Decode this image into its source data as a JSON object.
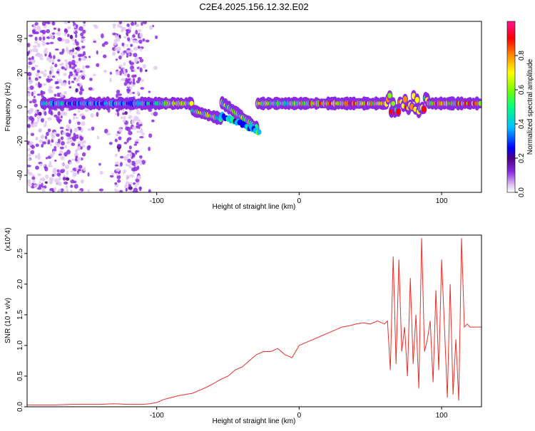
{
  "title": "C2E4.2025.156.12.32.E02",
  "colors": {
    "snr_line": "#e8302a",
    "frame": "#000000",
    "colormap": [
      "#ffffff",
      "#e2c9f2",
      "#8a2be2",
      "#4b0082",
      "#0000ff",
      "#00bfff",
      "#00ff7f",
      "#7cfc00",
      "#ffff00",
      "#ff8c00",
      "#ff0000",
      "#ff1493"
    ]
  },
  "chart_data": [
    {
      "type": "heatmap",
      "xlabel": "Height of straight line (km)",
      "ylabel": "Frequency (Hz)",
      "xlim": [
        -191,
        128
      ],
      "ylim": [
        -50,
        50
      ],
      "xticks": [
        {
          "v": -100,
          "label": "-100"
        },
        {
          "v": 0,
          "label": "0"
        },
        {
          "v": 100,
          "label": "100"
        }
      ],
      "yticks": [
        {
          "v": -40,
          "label": "-40"
        },
        {
          "v": -20,
          "label": "-20"
        },
        {
          "v": 0,
          "label": "0"
        },
        {
          "v": 20,
          "label": "20"
        },
        {
          "v": 40,
          "label": "40"
        }
      ],
      "colorbar": {
        "label": "Normalized spectral amplitude",
        "range": [
          0,
          1
        ],
        "ticks": [
          {
            "v": 0.0,
            "label": "0.0"
          },
          {
            "v": 0.2,
            "label": "0.2"
          },
          {
            "v": 0.4,
            "label": "0.4"
          },
          {
            "v": 0.6,
            "label": "0.6"
          },
          {
            "v": 0.8,
            "label": "0.8"
          }
        ]
      }
    },
    {
      "type": "line",
      "xlabel": "Height of straight line (km)",
      "ylabel": "SNR (10 * v/v)",
      "yscale_note": "(x10^4)",
      "xlim": [
        -191,
        128
      ],
      "ylim": [
        0,
        2.8
      ],
      "xticks": [
        {
          "v": -100,
          "label": "-100"
        },
        {
          "v": 0,
          "label": "0"
        },
        {
          "v": 100,
          "label": "100"
        }
      ],
      "yticks": [
        {
          "v": 0.0,
          "label": "0.0"
        },
        {
          "v": 0.5,
          "label": "0.5"
        },
        {
          "v": 1.0,
          "label": "1.0"
        },
        {
          "v": 1.5,
          "label": "1.5"
        },
        {
          "v": 2.0,
          "label": "2.0"
        },
        {
          "v": 2.5,
          "label": "2.5"
        }
      ],
      "series": [
        {
          "x": [
            -191,
            -180,
            -170,
            -160,
            -150,
            -140,
            -130,
            -120,
            -110,
            -105,
            -100,
            -95,
            -90,
            -85,
            -80,
            -75,
            -70,
            -65,
            -60,
            -55,
            -50,
            -45,
            -40,
            -35,
            -30,
            -25,
            -20,
            -15,
            -10,
            -5,
            0,
            5,
            10,
            15,
            20,
            25,
            30,
            35,
            40,
            45,
            50,
            55,
            60,
            62,
            64,
            66,
            68,
            70,
            72,
            74,
            76,
            78,
            80,
            82,
            84,
            86,
            88,
            90,
            92,
            94,
            96,
            98,
            100,
            102,
            104,
            106,
            108,
            110,
            112,
            114,
            116,
            118,
            120,
            124,
            128
          ],
          "y": [
            0.03,
            0.03,
            0.03,
            0.04,
            0.04,
            0.04,
            0.05,
            0.04,
            0.04,
            0.05,
            0.07,
            0.12,
            0.15,
            0.18,
            0.2,
            0.22,
            0.27,
            0.32,
            0.38,
            0.45,
            0.5,
            0.6,
            0.65,
            0.75,
            0.85,
            0.9,
            0.9,
            0.95,
            0.85,
            0.8,
            1.0,
            1.05,
            1.1,
            1.15,
            1.2,
            1.25,
            1.3,
            1.32,
            1.35,
            1.37,
            1.35,
            1.4,
            1.35,
            1.4,
            0.6,
            2.45,
            0.7,
            2.4,
            0.9,
            1.3,
            0.5,
            2.1,
            0.7,
            1.5,
            0.3,
            2.75,
            0.9,
            1.1,
            1.4,
            0.4,
            1.9,
            0.6,
            2.4,
            1.3,
            0.15,
            2.0,
            0.2,
            1.1,
            0.1,
            2.75,
            1.3,
            1.35,
            1.3,
            1.3,
            1.3
          ]
        }
      ]
    }
  ]
}
